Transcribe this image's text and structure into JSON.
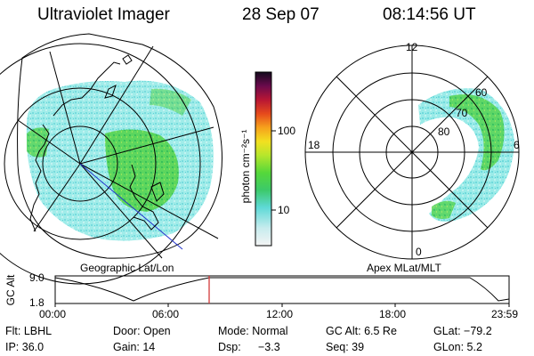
{
  "header": {
    "title": "Ultraviolet Imager",
    "date": "28 Sep 07",
    "time": "08:14:56 UT"
  },
  "left_map": {
    "label": "Geographic Lat/Lon"
  },
  "right_map": {
    "label": "Apex MLat/MLT",
    "mlt_labels": {
      "top": "12",
      "left": "18",
      "right": "6",
      "bottom": "0"
    },
    "lat_labels": [
      "80",
      "70",
      "60"
    ]
  },
  "colorbar": {
    "unit_label": "photon cm⁻²s⁻¹",
    "ticks": [
      "100",
      "10"
    ]
  },
  "altitude_plot": {
    "ylabel": "GC Alt",
    "y_ticks": [
      "9.0",
      "1.8"
    ],
    "x_ticks": [
      "00:00",
      "06:00",
      "12:00",
      "18:00",
      "23:59"
    ]
  },
  "info": {
    "row1": {
      "flt": "Flt: LBHL",
      "door": "Door: Open",
      "mode": "Mode: Normal",
      "gcalt": "GC Alt: 6.5 Re",
      "glat": "GLat: −79.2"
    },
    "row2": {
      "ip": "IP: 36.0",
      "gain": "Gain: 14",
      "dsp_label": "Dsp:",
      "dsp_value": "−3.3",
      "seq": "Seq: 39",
      "glon": "GLon:  5.2"
    }
  },
  "colors": {
    "cyan": "#6fe6e0",
    "green": "#49d24a",
    "time_marker": "#d23a3a"
  }
}
